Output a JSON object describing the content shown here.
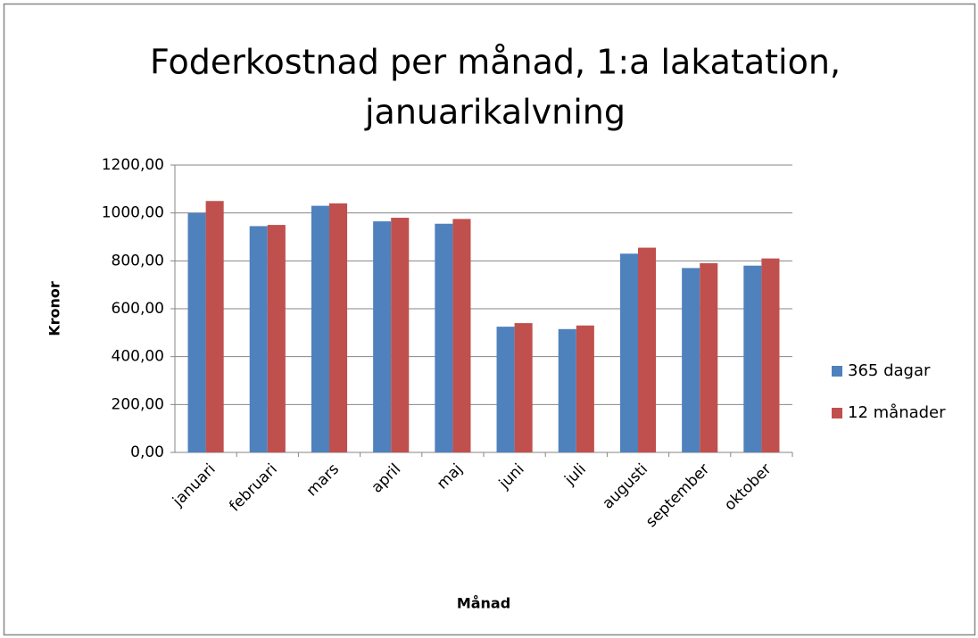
{
  "chart_data": {
    "type": "bar",
    "title": [
      "Foderkostnad per månad, 1:a lakatation,",
      "januarikalvning"
    ],
    "x_label": "Månad",
    "y_label": "Kronor",
    "categories": [
      "januari",
      "februari",
      "mars",
      "april",
      "maj",
      "juni",
      "juli",
      "augusti",
      "september",
      "oktober"
    ],
    "series": [
      {
        "name": "365 dagar",
        "color": "#4f81bd",
        "values": [
          1000,
          945,
          1030,
          965,
          955,
          525,
          515,
          830,
          770,
          780
        ]
      },
      {
        "name": "12 månader",
        "color": "#c0504d",
        "values": [
          1050,
          950,
          1040,
          980,
          975,
          540,
          530,
          855,
          790,
          810
        ]
      }
    ],
    "ylim": [
      0,
      1200
    ],
    "yticks": [
      {
        "value": 0,
        "label": "0,00"
      },
      {
        "value": 200,
        "label": "200,00"
      },
      {
        "value": 400,
        "label": "400,00"
      },
      {
        "value": 600,
        "label": "600,00"
      },
      {
        "value": 800,
        "label": "800,00"
      },
      {
        "value": 1000,
        "label": "1000,00"
      },
      {
        "value": 1200,
        "label": "1200,00"
      }
    ],
    "grid": true,
    "legend": "right"
  }
}
